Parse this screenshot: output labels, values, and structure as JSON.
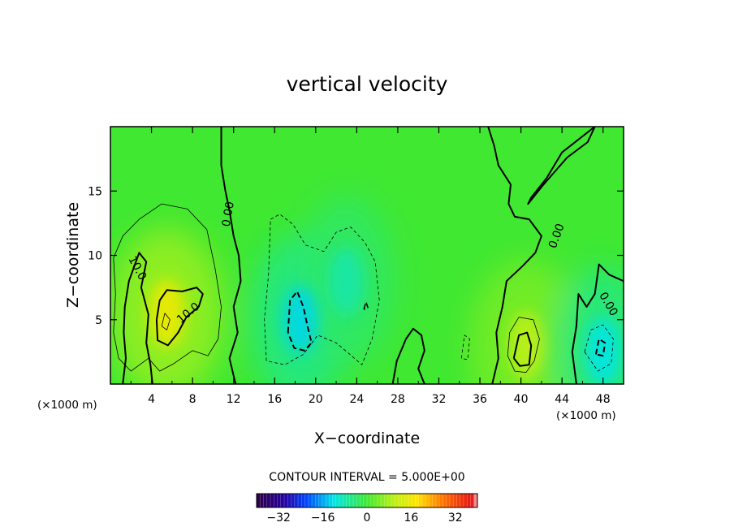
{
  "chart_data": {
    "type": "heatmap",
    "title": "vertical velocity",
    "xlabel": "X−coordinate",
    "ylabel": "Z−coordinate",
    "x_unit": "(×1000 m)",
    "z_unit": "(×1000 m)",
    "xlim": [
      0,
      50
    ],
    "ylim": [
      0,
      20
    ],
    "x_ticks": [
      4,
      8,
      12,
      16,
      20,
      24,
      28,
      32,
      36,
      40,
      44,
      48
    ],
    "x_tick_labels": [
      "4",
      "8",
      "12",
      "16",
      "20",
      "24",
      "28",
      "32",
      "36",
      "40",
      "44",
      "48"
    ],
    "y_ticks": [
      5,
      10,
      15
    ],
    "y_tick_labels": [
      "5",
      "10",
      "15"
    ],
    "contour_interval_text": "CONTOUR INTERVAL = 5.000E+00",
    "contour_labels": [
      {
        "text": "0.00",
        "x": 11.5,
        "z": 13.2,
        "angle": -80
      },
      {
        "text": "10.0",
        "x": 2.6,
        "z": 9.0,
        "angle": 62
      },
      {
        "text": "10.0",
        "x": 7.6,
        "z": 5.5,
        "angle": -40
      },
      {
        "text": "0.00",
        "x": 43.5,
        "z": 11.5,
        "angle": -70
      },
      {
        "text": "0.00",
        "x": 48.5,
        "z": 6.2,
        "angle": 60
      }
    ],
    "features": [
      {
        "kind": "updraft",
        "x": 5.5,
        "z": 5.5,
        "peak": 16
      },
      {
        "kind": "downdraft",
        "x": 18.5,
        "z": 5.0,
        "peak": -13
      },
      {
        "kind": "downdraft",
        "x": 23.0,
        "z": 8.0,
        "peak": -8
      },
      {
        "kind": "updraft",
        "x": 40.5,
        "z": 3.0,
        "peak": 10
      },
      {
        "kind": "downdraft",
        "x": 48.0,
        "z": 2.5,
        "peak": -12
      }
    ],
    "colorbar": {
      "min": -40,
      "max": 40,
      "ticks": [
        -32,
        -16,
        0,
        16,
        32
      ],
      "tick_labels": [
        "−32",
        "−16",
        "0",
        "16",
        "32"
      ]
    }
  }
}
